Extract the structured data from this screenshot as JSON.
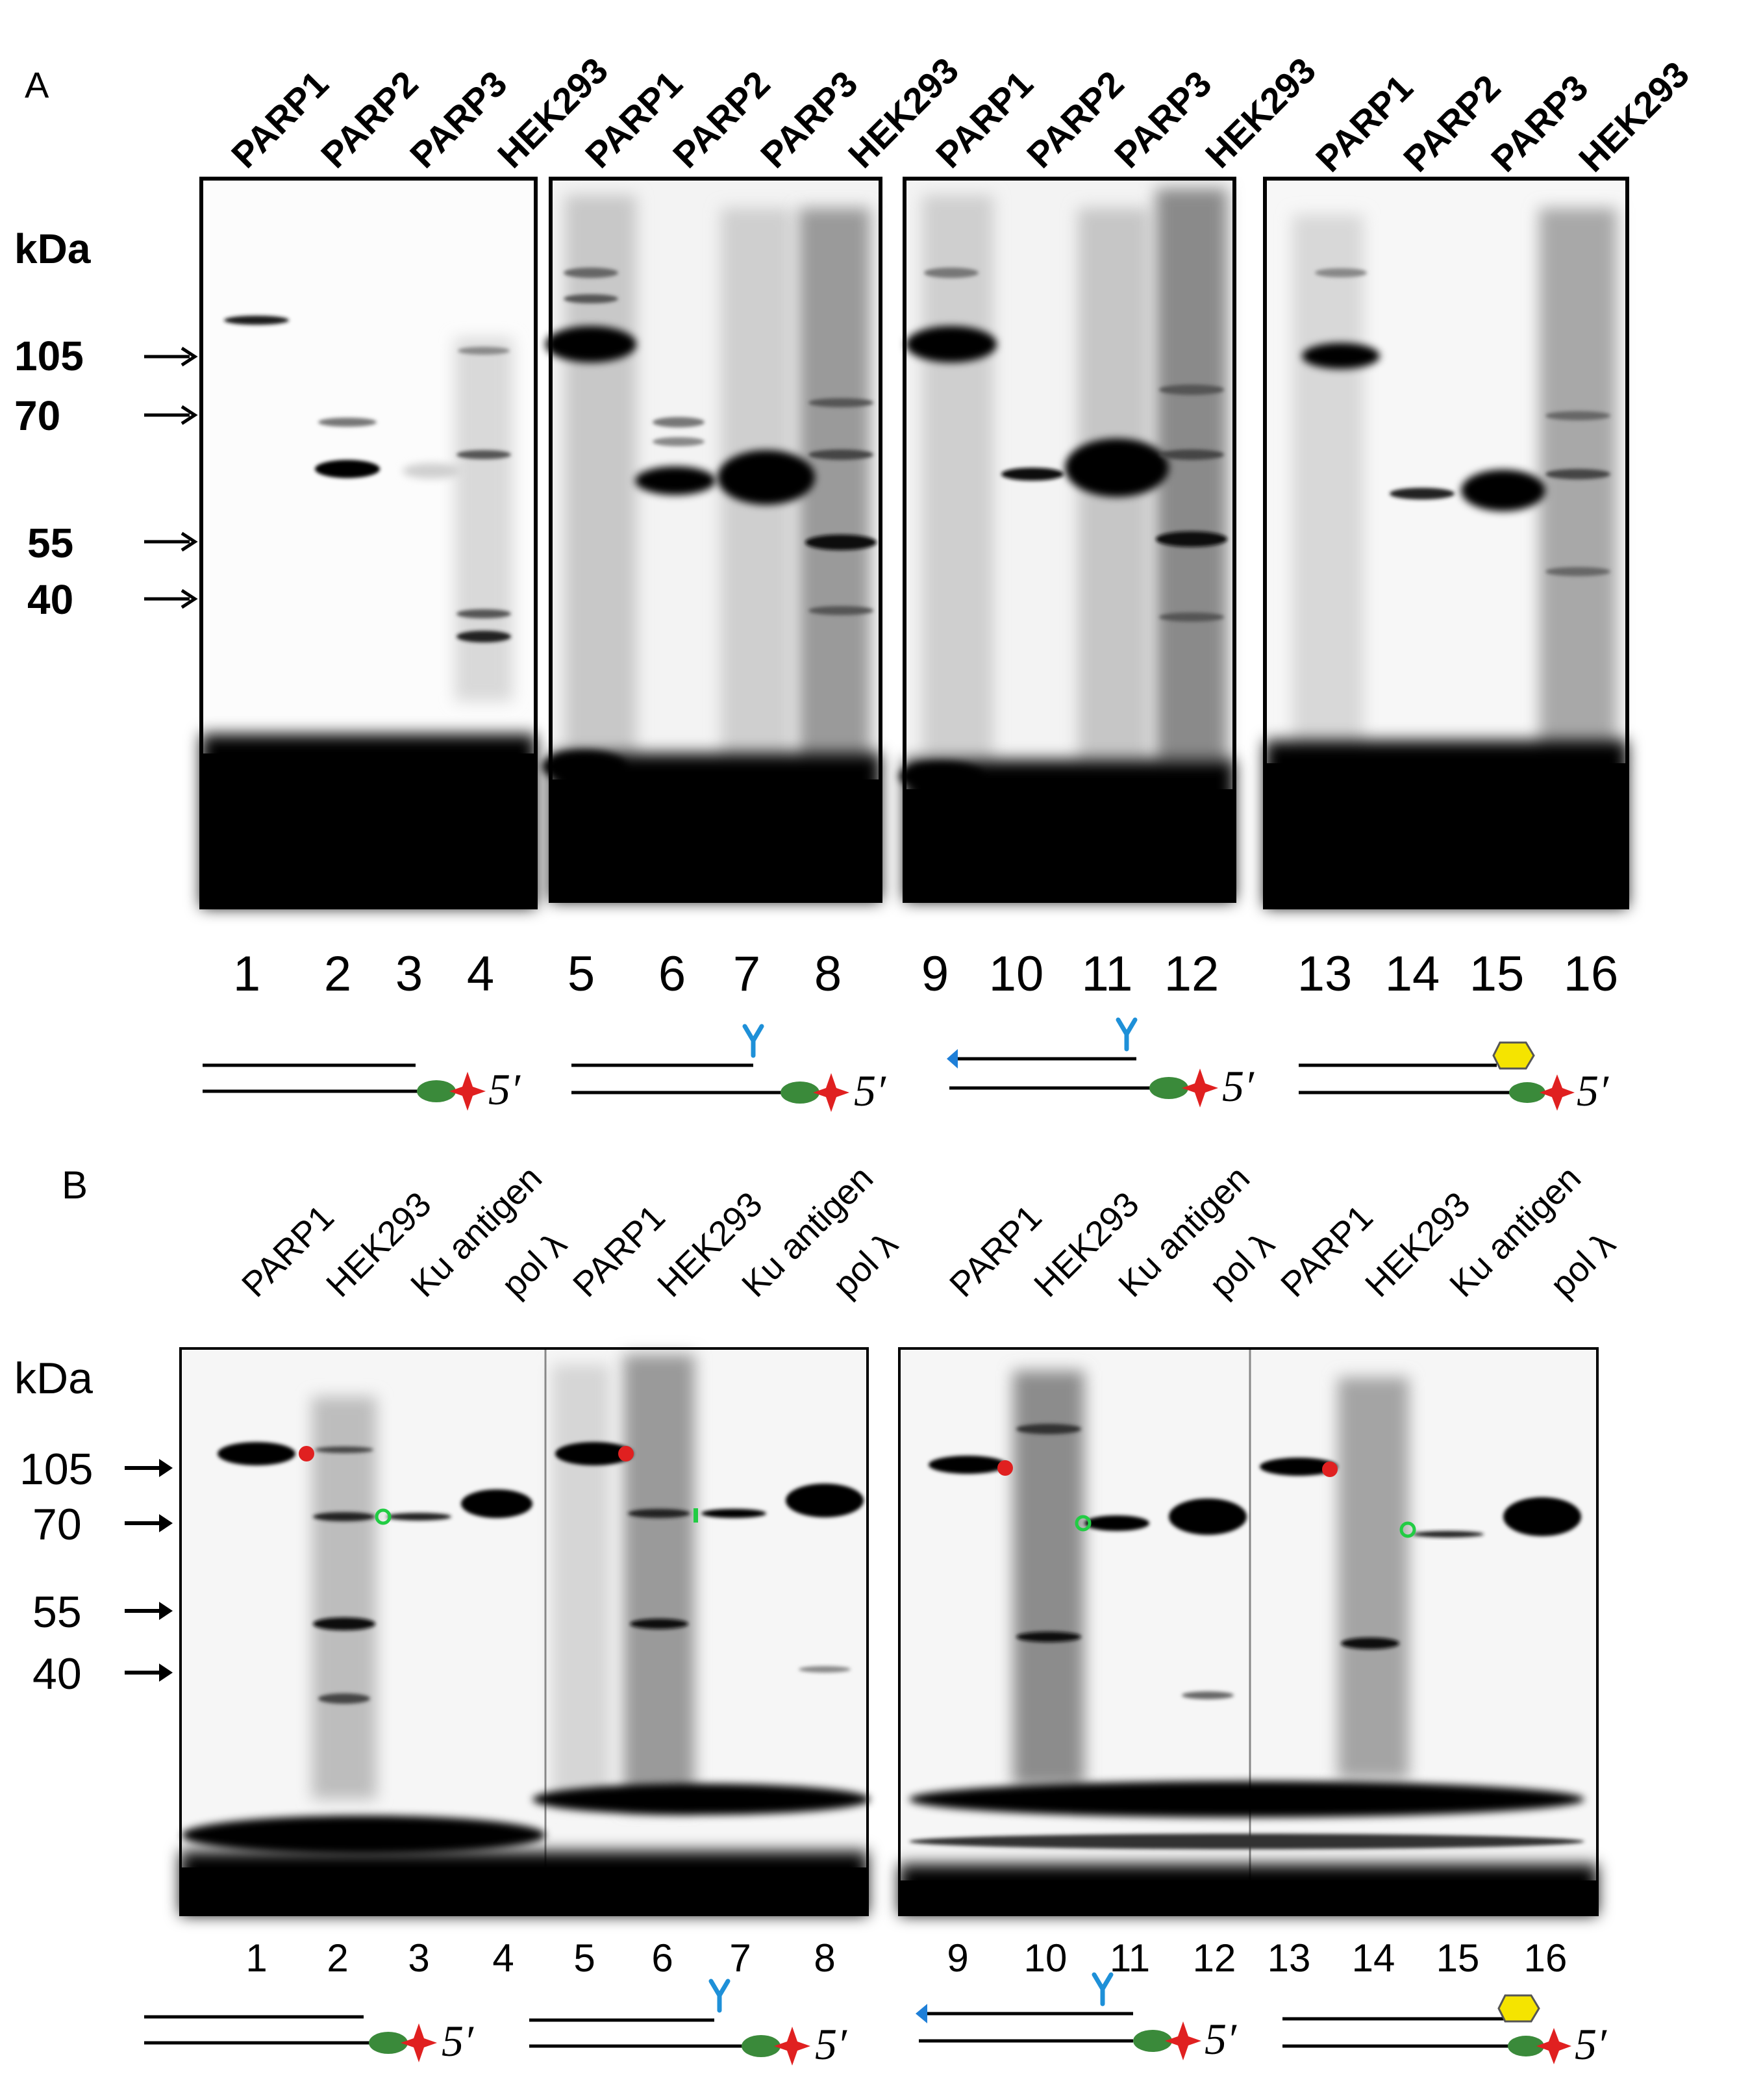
{
  "panelA": {
    "label": "A",
    "unit": "kDa",
    "markers": [
      "105",
      "70",
      "55",
      "40"
    ],
    "lane_headers": [
      "PARP1",
      "PARP2",
      "PARP3",
      "HEK293",
      "PARP1",
      "PARP2",
      "PARP3",
      "HEK293",
      "PARP1",
      "PARP2",
      "PARP3",
      "HEK293",
      "PARP1",
      "PARP2",
      "PARP3",
      "HEK293"
    ],
    "lane_numbers": [
      "1",
      "2",
      "3",
      "4",
      "5",
      "6",
      "7",
      "8",
      "9",
      "10",
      "11",
      "12",
      "13",
      "14",
      "15",
      "16"
    ]
  },
  "panelB": {
    "label": "B",
    "unit": "kDa",
    "markers": [
      "105",
      "70",
      "55",
      "40"
    ],
    "lane_headers": [
      "PARP1",
      "HEK293",
      "Ku antigen",
      "pol λ",
      "PARP1",
      "HEK293",
      "Ku antigen",
      "pol λ",
      "PARP1",
      "HEK293",
      "Ku antigen",
      "pol λ",
      "PARP1",
      "HEK293",
      "Ku antigen",
      "pol λ"
    ],
    "lane_numbers": [
      "1",
      "2",
      "3",
      "4",
      "5",
      "6",
      "7",
      "8",
      "9",
      "10",
      "11",
      "12",
      "13",
      "14",
      "15",
      "16"
    ]
  },
  "substrate_label": "5′",
  "colors": {
    "label_fluorophore": "#e02020",
    "conjugate": "#3a8a3a",
    "tag_y": "#1e90d8",
    "arrow_blue": "#1e7fd8",
    "adduct_yellow": "#f5e400",
    "red_dot": "#e02020",
    "green_ring": "#22cc44"
  }
}
